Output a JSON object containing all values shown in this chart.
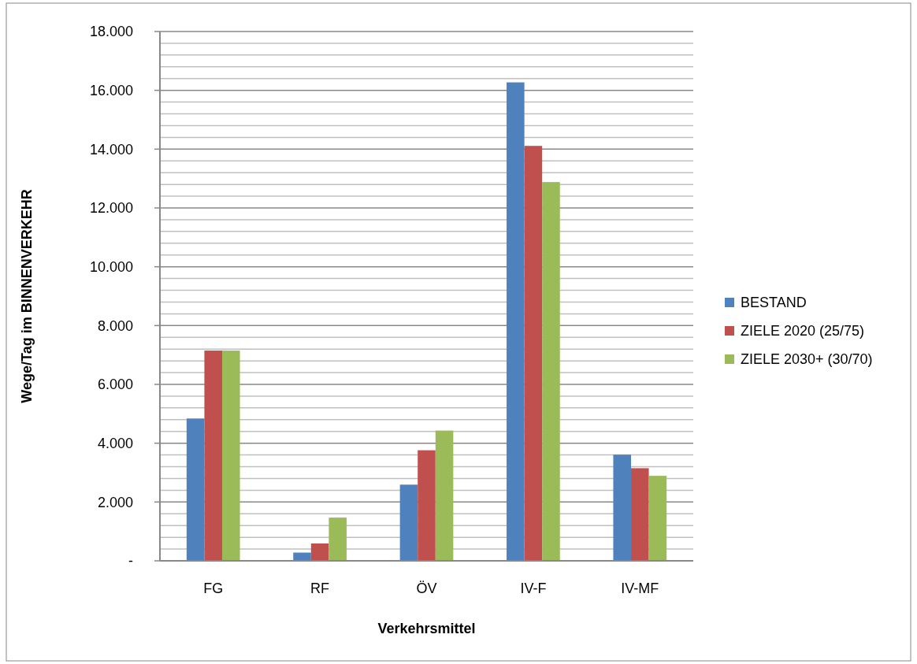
{
  "chart_data": {
    "type": "bar",
    "xlabel": "Verkehrsmittel",
    "ylabel": "Wege/Tag im BINNENVERKEHR",
    "categories": [
      "FG",
      "RF",
      "ÖV",
      "IV-F",
      "IV-MF"
    ],
    "series": [
      {
        "name": "BESTAND",
        "color": "#4f81bd",
        "values": [
          4840,
          280,
          2590,
          16270,
          3610
        ]
      },
      {
        "name": "ZIELE 2020 (25/75)",
        "color": "#c0504d",
        "values": [
          7150,
          590,
          3760,
          14110,
          3150
        ]
      },
      {
        "name": "ZIELE 2030+ (30/70)",
        "color": "#9bbb59",
        "values": [
          7150,
          1470,
          4430,
          12880,
          2890
        ]
      }
    ],
    "ylim": [
      0,
      18000
    ],
    "yticks": [
      {
        "value": 0,
        "label": "-"
      },
      {
        "value": 400,
        "label": null
      },
      {
        "value": 800,
        "label": null
      },
      {
        "value": 1200,
        "label": null
      },
      {
        "value": 1600,
        "label": null
      },
      {
        "value": 2000,
        "label": "2.000"
      },
      {
        "value": 2400,
        "label": null
      },
      {
        "value": 2800,
        "label": null
      },
      {
        "value": 3200,
        "label": null
      },
      {
        "value": 3600,
        "label": null
      },
      {
        "value": 4000,
        "label": "4.000"
      },
      {
        "value": 4400,
        "label": null
      },
      {
        "value": 4800,
        "label": null
      },
      {
        "value": 5200,
        "label": null
      },
      {
        "value": 5600,
        "label": null
      },
      {
        "value": 6000,
        "label": "6.000"
      },
      {
        "value": 6400,
        "label": null
      },
      {
        "value": 6800,
        "label": null
      },
      {
        "value": 7200,
        "label": null
      },
      {
        "value": 7600,
        "label": null
      },
      {
        "value": 8000,
        "label": "8.000"
      },
      {
        "value": 8400,
        "label": null
      },
      {
        "value": 8800,
        "label": null
      },
      {
        "value": 9200,
        "label": null
      },
      {
        "value": 9600,
        "label": null
      },
      {
        "value": 10000,
        "label": "10.000"
      },
      {
        "value": 10400,
        "label": null
      },
      {
        "value": 10800,
        "label": null
      },
      {
        "value": 11200,
        "label": null
      },
      {
        "value": 11600,
        "label": null
      },
      {
        "value": 12000,
        "label": "12.000"
      },
      {
        "value": 12400,
        "label": null
      },
      {
        "value": 12800,
        "label": null
      },
      {
        "value": 13200,
        "label": null
      },
      {
        "value": 13600,
        "label": null
      },
      {
        "value": 14000,
        "label": "14.000"
      },
      {
        "value": 14400,
        "label": null
      },
      {
        "value": 14800,
        "label": null
      },
      {
        "value": 15200,
        "label": null
      },
      {
        "value": 15600,
        "label": null
      },
      {
        "value": 16000,
        "label": "16.000"
      },
      {
        "value": 16400,
        "label": null
      },
      {
        "value": 16800,
        "label": null
      },
      {
        "value": 17200,
        "label": null
      },
      {
        "value": 17600,
        "label": null
      },
      {
        "value": 18000,
        "label": "18.000"
      }
    ],
    "grid": "y",
    "legend": "right"
  }
}
